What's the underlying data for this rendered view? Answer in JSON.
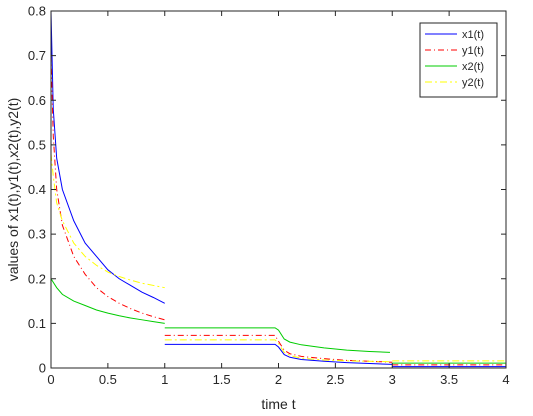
{
  "chart_data": {
    "type": "line",
    "xlabel": "time t",
    "ylabel": "values of x1(t),y1(t),x2(t),y2(t)",
    "xlim": [
      0,
      4
    ],
    "ylim": [
      0,
      0.8
    ],
    "xticks": [
      "0",
      "0.5",
      "1",
      "1.5",
      "2",
      "2.5",
      "3",
      "3.5",
      "4"
    ],
    "yticks": [
      "0",
      "0.1",
      "0.2",
      "0.3",
      "0.4",
      "0.5",
      "0.6",
      "0.7",
      "0.8"
    ],
    "grid": false,
    "legend_position": "top-right",
    "series": [
      {
        "name": "x1(t)",
        "color": "#0000ff",
        "dash": "solid",
        "segments": [
          [
            [
              0,
              0.8
            ],
            [
              0.02,
              0.58
            ],
            [
              0.05,
              0.47
            ],
            [
              0.1,
              0.4
            ],
            [
              0.2,
              0.33
            ],
            [
              0.3,
              0.28
            ],
            [
              0.4,
              0.25
            ],
            [
              0.5,
              0.22
            ],
            [
              0.6,
              0.2
            ],
            [
              0.7,
              0.185
            ],
            [
              0.8,
              0.17
            ],
            [
              0.9,
              0.158
            ],
            [
              1.0,
              0.145
            ]
          ],
          [
            [
              1.0,
              0.053
            ],
            [
              1.5,
              0.053
            ],
            [
              1.97,
              0.053
            ],
            [
              2.0,
              0.047
            ],
            [
              2.05,
              0.03
            ],
            [
              2.1,
              0.024
            ],
            [
              2.2,
              0.019
            ],
            [
              2.4,
              0.015
            ],
            [
              2.6,
              0.012
            ],
            [
              2.8,
              0.01
            ],
            [
              3.0,
              0.008
            ]
          ],
          [
            [
              3.0,
              0.003
            ],
            [
              4.0,
              0.003
            ]
          ]
        ]
      },
      {
        "name": "y1(t)",
        "color": "#ff0000",
        "dash": "6,3,1,3",
        "segments": [
          [
            [
              0,
              0.7
            ],
            [
              0.02,
              0.52
            ],
            [
              0.05,
              0.4
            ],
            [
              0.1,
              0.32
            ],
            [
              0.2,
              0.25
            ],
            [
              0.3,
              0.21
            ],
            [
              0.4,
              0.18
            ],
            [
              0.5,
              0.16
            ],
            [
              0.6,
              0.145
            ],
            [
              0.7,
              0.133
            ],
            [
              0.8,
              0.123
            ],
            [
              0.9,
              0.115
            ],
            [
              1.0,
              0.108
            ]
          ],
          [
            [
              1.0,
              0.073
            ],
            [
              1.5,
              0.073
            ],
            [
              1.97,
              0.073
            ],
            [
              2.0,
              0.06
            ],
            [
              2.05,
              0.04
            ],
            [
              2.1,
              0.032
            ],
            [
              2.2,
              0.026
            ],
            [
              2.4,
              0.021
            ],
            [
              2.6,
              0.017
            ],
            [
              2.8,
              0.015
            ],
            [
              3.0,
              0.013
            ]
          ],
          [
            [
              3.0,
              0.007
            ],
            [
              4.0,
              0.007
            ]
          ]
        ]
      },
      {
        "name": "x2(t)",
        "color": "#00cc00",
        "dash": "solid",
        "segments": [
          [
            [
              0,
              0.2
            ],
            [
              0.05,
              0.18
            ],
            [
              0.1,
              0.165
            ],
            [
              0.2,
              0.15
            ],
            [
              0.3,
              0.14
            ],
            [
              0.4,
              0.13
            ],
            [
              0.5,
              0.123
            ],
            [
              0.6,
              0.117
            ],
            [
              0.7,
              0.112
            ],
            [
              0.8,
              0.108
            ],
            [
              0.9,
              0.104
            ],
            [
              1.0,
              0.1
            ]
          ],
          [
            [
              1.0,
              0.09
            ],
            [
              1.5,
              0.09
            ],
            [
              1.97,
              0.09
            ],
            [
              2.0,
              0.085
            ],
            [
              2.05,
              0.065
            ],
            [
              2.1,
              0.058
            ],
            [
              2.2,
              0.052
            ],
            [
              2.4,
              0.045
            ],
            [
              2.6,
              0.04
            ],
            [
              2.8,
              0.037
            ],
            [
              2.98,
              0.035
            ]
          ],
          [
            [
              3.0,
              0.011
            ],
            [
              4.0,
              0.011
            ]
          ]
        ]
      },
      {
        "name": "y2(t)",
        "color": "#ffff00",
        "dash": "7,3,2,3",
        "segments": [
          [
            [
              0,
              0.48
            ],
            [
              0.02,
              0.43
            ],
            [
              0.05,
              0.37
            ],
            [
              0.1,
              0.33
            ],
            [
              0.2,
              0.28
            ],
            [
              0.3,
              0.25
            ],
            [
              0.4,
              0.23
            ],
            [
              0.5,
              0.215
            ],
            [
              0.6,
              0.205
            ],
            [
              0.7,
              0.197
            ],
            [
              0.8,
              0.19
            ],
            [
              0.9,
              0.185
            ],
            [
              1.0,
              0.18
            ]
          ],
          [
            [
              1.0,
              0.063
            ],
            [
              1.5,
              0.063
            ],
            [
              1.97,
              0.063
            ],
            [
              2.0,
              0.055
            ],
            [
              2.05,
              0.035
            ],
            [
              2.1,
              0.028
            ],
            [
              2.2,
              0.022
            ],
            [
              2.4,
              0.018
            ],
            [
              2.6,
              0.016
            ],
            [
              2.8,
              0.015
            ],
            [
              3.0,
              0.014
            ]
          ],
          [
            [
              3.0,
              0.016
            ],
            [
              4.0,
              0.016
            ]
          ]
        ]
      }
    ]
  }
}
